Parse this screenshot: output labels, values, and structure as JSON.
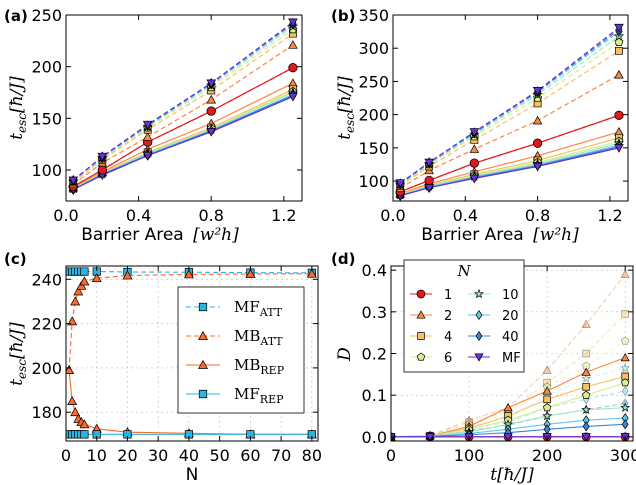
{
  "panel_labels": [
    "(a)",
    "(b)",
    "(c)",
    "(d)"
  ],
  "ab_xlabel_text": "Barrier Area",
  "ab_xlabel_unit": "[w²h]",
  "ylabel_main": "t",
  "ylabel_sub": "esc",
  "ylabel_unit": "[ħ/J]",
  "c_xlabel": "N",
  "d_xlabel": "t[ħ/J]",
  "d_ylabel": "D",
  "d_legend_title": "N",
  "palette": {
    "1": "#e31a1c",
    "2": "#fb8740",
    "4": "#f6c063",
    "6": "#d9ed8a",
    "10": "#9de6c3",
    "20": "#5ec9e8",
    "40": "#3a86d6",
    "MF": "#6a2fd6"
  },
  "chart_data": [
    {
      "id": "a",
      "type": "line",
      "xlabel": "Barrier Area [w²h]",
      "ylabel": "t_esc [ħ/J]",
      "xlim": [
        0.0,
        1.3
      ],
      "ylim": [
        70,
        250
      ],
      "xticks": [
        0.0,
        0.4,
        0.8,
        1.2
      ],
      "yticks": [
        100,
        150,
        200,
        250
      ],
      "x": [
        0.04,
        0.2,
        0.45,
        0.8,
        1.25
      ],
      "series": [
        {
          "name": "1",
          "group": "repulsive",
          "marker": "circle",
          "values": [
            84,
            100,
            127,
            157,
            199
          ]
        },
        {
          "name": "2",
          "group": "repulsive",
          "marker": "triangle",
          "values": [
            83,
            98,
            120,
            145,
            184
          ]
        },
        {
          "name": "4",
          "group": "repulsive",
          "marker": "square",
          "values": [
            82,
            97,
            117,
            141,
            178
          ]
        },
        {
          "name": "6",
          "group": "repulsive",
          "marker": "pentagon",
          "values": [
            82,
            97,
            116,
            140,
            176
          ]
        },
        {
          "name": "10",
          "group": "repulsive",
          "marker": "star",
          "values": [
            82,
            96,
            116,
            139,
            175
          ]
        },
        {
          "name": "20",
          "group": "repulsive",
          "marker": "diamond",
          "values": [
            81,
            96,
            115,
            138,
            173
          ]
        },
        {
          "name": "40",
          "group": "repulsive",
          "marker": "diamond",
          "values": [
            81,
            96,
            114,
            138,
            172
          ]
        },
        {
          "name": "MF",
          "group": "repulsive",
          "marker": "triangle-down",
          "values": [
            81,
            95,
            114,
            137,
            171
          ]
        },
        {
          "name": "1",
          "group": "attractive",
          "marker": "circle",
          "values": [
            84,
            100,
            127,
            157,
            199
          ]
        },
        {
          "name": "2",
          "group": "attractive",
          "marker": "triangle",
          "values": [
            86,
            107,
            132,
            168,
            221
          ]
        },
        {
          "name": "4",
          "group": "attractive",
          "marker": "square",
          "values": [
            88,
            110,
            139,
            177,
            232
          ]
        },
        {
          "name": "6",
          "group": "attractive",
          "marker": "pentagon",
          "values": [
            89,
            111,
            141,
            180,
            236
          ]
        },
        {
          "name": "10",
          "group": "attractive",
          "marker": "star",
          "values": [
            89,
            112,
            142,
            182,
            239
          ]
        },
        {
          "name": "20",
          "group": "attractive",
          "marker": "diamond",
          "values": [
            90,
            112,
            143,
            183,
            241
          ]
        },
        {
          "name": "40",
          "group": "attractive",
          "marker": "diamond",
          "values": [
            90,
            113,
            143,
            184,
            242
          ]
        },
        {
          "name": "MF",
          "group": "attractive",
          "marker": "triangle-down",
          "values": [
            90,
            113,
            144,
            184,
            243
          ]
        }
      ]
    },
    {
      "id": "b",
      "type": "line",
      "xlabel": "Barrier Area [w²h]",
      "ylabel": "t_esc [ħ/J]",
      "xlim": [
        0.0,
        1.3
      ],
      "ylim": [
        70,
        350
      ],
      "xticks": [
        0.0,
        0.4,
        0.8,
        1.2
      ],
      "yticks": [
        100,
        150,
        200,
        250,
        300,
        350
      ],
      "x": [
        0.04,
        0.2,
        0.45,
        0.8,
        1.25
      ],
      "series": [
        {
          "name": "1",
          "group": "repulsive",
          "marker": "circle",
          "values": [
            84,
            101,
            127,
            157,
            199
          ]
        },
        {
          "name": "2",
          "group": "repulsive",
          "marker": "triangle",
          "values": [
            81,
            96,
            114,
            138,
            174
          ]
        },
        {
          "name": "4",
          "group": "repulsive",
          "marker": "square",
          "values": [
            80,
            94,
            110,
            131,
            165
          ]
        },
        {
          "name": "6",
          "group": "repulsive",
          "marker": "pentagon",
          "values": [
            79,
            93,
            108,
            128,
            160
          ]
        },
        {
          "name": "10",
          "group": "repulsive",
          "marker": "star",
          "values": [
            79,
            92,
            107,
            126,
            157
          ]
        },
        {
          "name": "20",
          "group": "repulsive",
          "marker": "diamond",
          "values": [
            78,
            91,
            106,
            124,
            154
          ]
        },
        {
          "name": "40",
          "group": "repulsive",
          "marker": "diamond",
          "values": [
            78,
            90,
            105,
            123,
            152
          ]
        },
        {
          "name": "MF",
          "group": "repulsive",
          "marker": "triangle-down",
          "values": [
            78,
            90,
            104,
            122,
            150
          ]
        },
        {
          "name": "1",
          "group": "attractive",
          "marker": "circle",
          "values": [
            84,
            101,
            127,
            157,
            199
          ]
        },
        {
          "name": "2",
          "group": "attractive",
          "marker": "triangle",
          "values": [
            89,
            116,
            148,
            191,
            260
          ]
        },
        {
          "name": "4",
          "group": "attractive",
          "marker": "square",
          "values": [
            93,
            122,
            162,
            217,
            296
          ]
        },
        {
          "name": "6",
          "group": "attractive",
          "marker": "pentagon",
          "values": [
            94,
            125,
            167,
            225,
            309
          ]
        },
        {
          "name": "10",
          "group": "attractive",
          "marker": "star",
          "values": [
            95,
            126,
            170,
            230,
            318
          ]
        },
        {
          "name": "20",
          "group": "attractive",
          "marker": "diamond",
          "values": [
            96,
            127,
            172,
            233,
            325
          ]
        },
        {
          "name": "40",
          "group": "attractive",
          "marker": "diamond",
          "values": [
            96,
            128,
            173,
            235,
            328
          ]
        },
        {
          "name": "MF",
          "group": "attractive",
          "marker": "triangle-down",
          "values": [
            97,
            128,
            174,
            236,
            331
          ]
        }
      ]
    },
    {
      "id": "c",
      "type": "line",
      "xlabel": "N",
      "ylabel": "t_esc [ħ/J]",
      "xlim": [
        0,
        82
      ],
      "ylim": [
        167,
        246
      ],
      "xticks": [
        0,
        10,
        20,
        30,
        40,
        50,
        60,
        70,
        80
      ],
      "yticks": [
        180,
        200,
        220,
        240
      ],
      "legend_position": "center-right",
      "series": [
        {
          "name": "MF_ATT",
          "label_main": "MF",
          "label_sub": "ATT",
          "style": "dashed",
          "marker": "square",
          "color": "#29b5e0",
          "x": [
            1,
            2,
            3,
            4,
            5,
            6,
            10,
            20,
            40,
            60,
            80
          ],
          "values": [
            243.5,
            243.5,
            243.5,
            243.5,
            243.5,
            243.5,
            243.5,
            243.3,
            243.2,
            243.0,
            242.9
          ]
        },
        {
          "name": "MB_ATT",
          "label_main": "MB",
          "label_sub": "ATT",
          "style": "dashed",
          "marker": "triangle",
          "color": "#fb6a2c",
          "x": [
            1,
            2,
            3,
            4,
            5,
            6,
            10,
            20,
            40,
            60,
            80
          ],
          "values": [
            199,
            221,
            230,
            234.5,
            237,
            239,
            240.5,
            241.7,
            242.2,
            242.4,
            242.5
          ]
        },
        {
          "name": "MB_REP",
          "label_main": "MB",
          "label_sub": "REP",
          "style": "solid",
          "marker": "triangle",
          "color": "#fb6a2c",
          "x": [
            1,
            2,
            3,
            4,
            5,
            6,
            10,
            20,
            40,
            60,
            80
          ],
          "values": [
            199,
            185,
            180,
            177,
            175.5,
            174.5,
            172.5,
            171,
            170.5,
            170,
            170
          ]
        },
        {
          "name": "MF_REP",
          "label_main": "MF",
          "label_sub": "REP",
          "style": "solid",
          "marker": "square",
          "color": "#29b5e0",
          "x": [
            1,
            2,
            3,
            4,
            5,
            6,
            10,
            20,
            40,
            60,
            80
          ],
          "values": [
            170,
            170,
            170,
            170,
            170,
            170,
            170,
            170,
            170,
            170,
            170
          ]
        }
      ]
    },
    {
      "id": "d",
      "type": "line",
      "xlabel": "t[ħ/J]",
      "ylabel": "D",
      "xlim": [
        0,
        310
      ],
      "ylim": [
        -0.01,
        0.41
      ],
      "xticks": [
        0,
        100,
        200,
        300
      ],
      "yticks": [
        0.0,
        0.1,
        0.2,
        0.3,
        0.4
      ],
      "legend_position": "top-left",
      "legend_title": "N",
      "x": [
        0,
        50,
        100,
        150,
        200,
        250,
        300
      ],
      "series": [
        {
          "name": "1",
          "marker": "circle",
          "solid": [
            0,
            0,
            0,
            0,
            0,
            0,
            0
          ],
          "faded": [
            0,
            0,
            0,
            0,
            0,
            0,
            0
          ]
        },
        {
          "name": "2",
          "marker": "triangle",
          "solid": [
            0,
            0.002,
            0.025,
            0.07,
            0.11,
            0.155,
            0.19
          ],
          "faded": [
            0,
            0.003,
            0.04,
            0.07,
            0.16,
            0.27,
            0.39
          ]
        },
        {
          "name": "4",
          "marker": "square",
          "solid": [
            0,
            0.002,
            0.02,
            0.05,
            0.09,
            0.12,
            0.145
          ],
          "faded": [
            0,
            0.003,
            0.035,
            0.06,
            0.13,
            0.2,
            0.295
          ]
        },
        {
          "name": "6",
          "marker": "pentagon",
          "solid": [
            0,
            0.002,
            0.017,
            0.04,
            0.07,
            0.1,
            0.13
          ],
          "faded": [
            0,
            0.003,
            0.03,
            0.055,
            0.12,
            0.17,
            0.23
          ]
        },
        {
          "name": "10",
          "marker": "star",
          "solid": [
            0,
            0.002,
            0.012,
            0.03,
            0.05,
            0.065,
            0.07
          ],
          "faded": [
            0,
            0.002,
            0.025,
            0.045,
            0.1,
            0.14,
            0.165
          ]
        },
        {
          "name": "20",
          "marker": "diamond",
          "solid": [
            0,
            0.001,
            0.008,
            0.018,
            0.03,
            0.04,
            0.045
          ],
          "faded": [
            0,
            0.002,
            0.02,
            0.035,
            0.07,
            0.09,
            0.11
          ]
        },
        {
          "name": "40",
          "marker": "diamond",
          "solid": [
            0,
            0.001,
            0.005,
            0.01,
            0.018,
            0.025,
            0.03
          ],
          "faded": [
            0,
            0.002,
            0.015,
            0.028,
            0.05,
            0.065,
            0.08
          ]
        },
        {
          "name": "MF",
          "marker": "triangle-down",
          "solid": [
            0,
            0,
            0,
            0,
            0,
            0,
            0
          ],
          "faded": [
            0,
            0,
            0,
            0,
            0,
            0,
            0
          ]
        }
      ]
    }
  ]
}
